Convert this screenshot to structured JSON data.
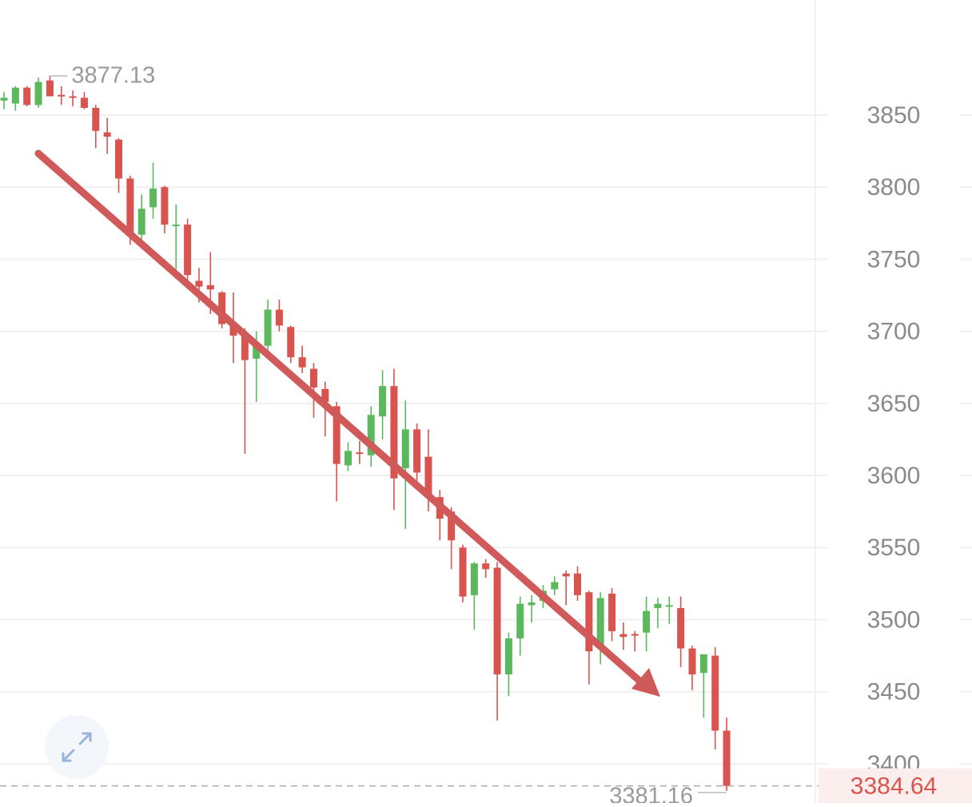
{
  "chart_data": {
    "type": "candlestick",
    "open": [
      3860,
      3858,
      3869,
      3857,
      3874,
      3864,
      3863,
      3862,
      3855,
      3838,
      3833,
      3806,
      3767,
      3786,
      3800,
      3773,
      3774,
      3735,
      3732,
      3727,
      3706,
      3698,
      3681,
      3690,
      3715,
      3703,
      3682,
      3674,
      3660,
      3648,
      3607,
      3616,
      3614,
      3641,
      3662,
      3605,
      3632,
      3613,
      3585,
      3575,
      3550,
      3517,
      3539,
      3536,
      3462,
      3487,
      3510,
      3513,
      3521,
      3532,
      3532,
      3519,
      3480,
      3518,
      3490,
      3490,
      3491,
      3508,
      3509,
      3508,
      3480,
      3463,
      3475,
      3423
    ],
    "high": [
      3866,
      3870,
      3870,
      3876,
      3877.13,
      3870,
      3867,
      3866,
      3857,
      3848,
      3834,
      3808,
      3795,
      3817,
      3801,
      3788,
      3778,
      3744,
      3755,
      3728,
      3727,
      3702,
      3700,
      3722,
      3722,
      3704,
      3690,
      3678,
      3665,
      3651,
      3623,
      3624,
      3648,
      3673,
      3674,
      3652,
      3636,
      3632,
      3590,
      3578,
      3552,
      3540,
      3542,
      3540,
      3491,
      3516,
      3517,
      3524,
      3530,
      3534,
      3537,
      3520,
      3519,
      3522,
      3498,
      3492,
      3516,
      3515,
      3516,
      3516,
      3482,
      3476,
      3481,
      3432
    ],
    "low": [
      3854,
      3853,
      3856,
      3855,
      3863,
      3857,
      3856,
      3854,
      3827,
      3823,
      3796,
      3760,
      3762,
      3778,
      3768,
      3743,
      3735,
      3720,
      3712,
      3702,
      3678,
      3615,
      3651,
      3686,
      3700,
      3678,
      3671,
      3640,
      3627,
      3582,
      3603,
      3608,
      3606,
      3625,
      3576,
      3563,
      3590,
      3575,
      3555,
      3535,
      3512,
      3493,
      3529,
      3430,
      3447,
      3475,
      3498,
      3508,
      3517,
      3510,
      3513,
      3455,
      3469,
      3485,
      3479,
      3478,
      3478,
      3494,
      3497,
      3467,
      3451,
      3432,
      3410,
      3381.16
    ],
    "close": [
      3862,
      3869,
      3857,
      3873,
      3863,
      3863,
      3862,
      3855,
      3839,
      3835,
      3806,
      3767,
      3785,
      3799,
      3774,
      3774,
      3739,
      3731,
      3729,
      3705,
      3697,
      3680,
      3690,
      3715,
      3704,
      3682,
      3675,
      3661,
      3651,
      3608,
      3617,
      3615,
      3642,
      3662,
      3598,
      3632,
      3602,
      3587,
      3570,
      3555,
      3516,
      3539,
      3535,
      3462,
      3487,
      3511,
      3512,
      3520,
      3526,
      3530,
      3517,
      3478,
      3515,
      3492,
      3488,
      3489,
      3506,
      3511,
      3510,
      3480,
      3462,
      3476,
      3423,
      3384.64
    ],
    "up_color": "#5cb85c",
    "down_color": "#d9534f",
    "ylim": [
      3372.8,
      3929.8
    ],
    "yticks": [
      3400,
      3450,
      3500,
      3550,
      3600,
      3650,
      3700,
      3750,
      3800,
      3850
    ],
    "grid": true,
    "max_label": 3877.13,
    "min_label": 3381.16,
    "last_price": 3384.64
  }
}
